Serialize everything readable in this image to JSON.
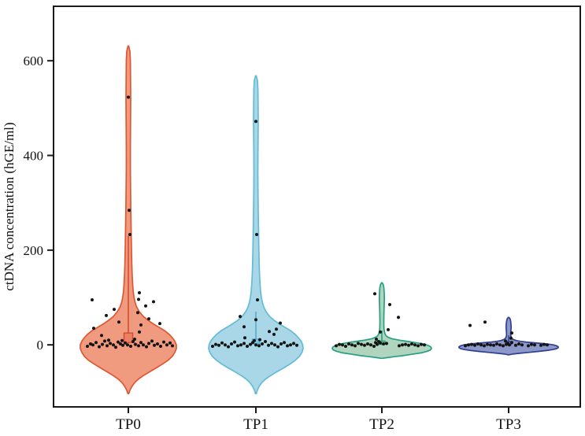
{
  "figure": {
    "background": "#ffffff",
    "axis_color": "#1a1a1a"
  },
  "chart_data": {
    "type": "violin",
    "title": "",
    "xlabel": "",
    "ylabel": "ctDNA concentration (hGE/ml)",
    "categories": [
      "TP0",
      "TP1",
      "TP2",
      "TP3"
    ],
    "y_ticks": [
      0,
      200,
      400,
      600
    ],
    "ylim": [
      -131,
      715
    ],
    "grid": false,
    "legend": "none",
    "point_color": "#141414",
    "point_radius": 2,
    "groups": [
      {
        "name": "TP0",
        "fill": "#F09A80",
        "stroke": "#DE5733",
        "peak_value": 631,
        "min_value": -103,
        "box": {
          "lo": 5,
          "hi": 25,
          "width": 11,
          "whisker_hi": 230,
          "fill": "#EC7F64",
          "stroke": "#D2492A"
        },
        "profile": [
          [
            631,
            0.5
          ],
          [
            620,
            2
          ],
          [
            600,
            2.6
          ],
          [
            560,
            2.8
          ],
          [
            520,
            3
          ],
          [
            470,
            2.8
          ],
          [
            420,
            2.6
          ],
          [
            370,
            2.6
          ],
          [
            320,
            2.9
          ],
          [
            280,
            3.2
          ],
          [
            240,
            3.6
          ],
          [
            200,
            4
          ],
          [
            170,
            4.4
          ],
          [
            150,
            4.8
          ],
          [
            130,
            5.4
          ],
          [
            112,
            6.2
          ],
          [
            100,
            7.2
          ],
          [
            90,
            8.5
          ],
          [
            80,
            10.5
          ],
          [
            70,
            14
          ],
          [
            60,
            19
          ],
          [
            52,
            25
          ],
          [
            45,
            31
          ],
          [
            38,
            38
          ],
          [
            30,
            46
          ],
          [
            22,
            52
          ],
          [
            15,
            56
          ],
          [
            8,
            59
          ],
          [
            0,
            61
          ],
          [
            -8,
            61
          ],
          [
            -16,
            59
          ],
          [
            -24,
            56
          ],
          [
            -32,
            51
          ],
          [
            -40,
            44
          ],
          [
            -48,
            36
          ],
          [
            -56,
            28
          ],
          [
            -64,
            20
          ],
          [
            -72,
            13
          ],
          [
            -80,
            8
          ],
          [
            -88,
            4.5
          ],
          [
            -96,
            2
          ],
          [
            -103,
            0.5
          ]
        ],
        "points": [
          [
            -3,
            -52
          ],
          [
            2,
            -48
          ],
          [
            0,
            -45
          ],
          [
            5,
            -41
          ],
          [
            -4,
            -37
          ],
          [
            1,
            -33
          ],
          [
            8,
            -30
          ],
          [
            -2,
            -27
          ],
          [
            3,
            -23
          ],
          [
            0,
            -19
          ],
          [
            -5,
            -16
          ],
          [
            6,
            -13
          ],
          [
            2,
            -10
          ],
          [
            -1,
            -7
          ],
          [
            4,
            -4
          ],
          [
            0,
            -1
          ],
          [
            -3,
            3
          ],
          [
            7,
            6
          ],
          [
            1,
            9
          ],
          [
            -2,
            13
          ],
          [
            5,
            16
          ],
          [
            0,
            19
          ],
          [
            -4,
            23
          ],
          [
            3,
            26
          ],
          [
            8,
            30
          ],
          [
            -1,
            33
          ],
          [
            2,
            37
          ],
          [
            -3,
            41
          ],
          [
            6,
            45
          ],
          [
            0,
            49
          ],
          [
            4,
            53
          ],
          [
            -2,
            56
          ],
          [
            10,
            -25
          ],
          [
            12,
            8
          ],
          [
            9,
            -8
          ],
          [
            20,
            -34
          ],
          [
            27,
            14
          ],
          [
            35,
            -44
          ],
          [
            42,
            16
          ],
          [
            48,
            -12
          ],
          [
            55,
            26
          ],
          [
            62,
            -28
          ],
          [
            68,
            12
          ],
          [
            75,
            -18
          ],
          [
            82,
            22
          ],
          [
            91,
            32
          ],
          [
            96,
            13
          ],
          [
            95,
            -46
          ],
          [
            110,
            14
          ],
          [
            45,
            40
          ],
          [
            233,
            2
          ],
          [
            284,
            1
          ],
          [
            523,
            0
          ]
        ]
      },
      {
        "name": "TP1",
        "fill": "#A9D7E8",
        "stroke": "#64BBD6",
        "peak_value": 568,
        "min_value": -103,
        "box": {
          "lo": 2,
          "hi": 12,
          "width": 9,
          "whisker_hi": 70,
          "fill": "#79C4DE",
          "stroke": "#4FA8C9"
        },
        "profile": [
          [
            568,
            0.5
          ],
          [
            558,
            2
          ],
          [
            540,
            2.6
          ],
          [
            510,
            2.8
          ],
          [
            475,
            3
          ],
          [
            440,
            2.8
          ],
          [
            400,
            2.6
          ],
          [
            360,
            2.5
          ],
          [
            320,
            2.7
          ],
          [
            280,
            3
          ],
          [
            240,
            3.4
          ],
          [
            200,
            3.8
          ],
          [
            170,
            4.2
          ],
          [
            150,
            4.6
          ],
          [
            130,
            5.2
          ],
          [
            112,
            6
          ],
          [
            100,
            7
          ],
          [
            90,
            8.2
          ],
          [
            80,
            10
          ],
          [
            70,
            13
          ],
          [
            60,
            17.5
          ],
          [
            52,
            23
          ],
          [
            45,
            29
          ],
          [
            38,
            36
          ],
          [
            30,
            44
          ],
          [
            22,
            50
          ],
          [
            15,
            54
          ],
          [
            8,
            57.5
          ],
          [
            0,
            59.5
          ],
          [
            -8,
            60
          ],
          [
            -16,
            58.5
          ],
          [
            -24,
            55.5
          ],
          [
            -32,
            50.5
          ],
          [
            -40,
            44
          ],
          [
            -48,
            36
          ],
          [
            -56,
            27.5
          ],
          [
            -64,
            19.5
          ],
          [
            -72,
            12.5
          ],
          [
            -80,
            7.5
          ],
          [
            -88,
            4
          ],
          [
            -96,
            1.8
          ],
          [
            -103,
            0.5
          ]
        ],
        "points": [
          [
            -3,
            -55
          ],
          [
            1,
            -51
          ],
          [
            -1,
            -47
          ],
          [
            4,
            -43
          ],
          [
            0,
            -39
          ],
          [
            -4,
            -35
          ],
          [
            2,
            -31
          ],
          [
            6,
            -27
          ],
          [
            -2,
            -23
          ],
          [
            0,
            -19
          ],
          [
            3,
            -15
          ],
          [
            -3,
            -11
          ],
          [
            1,
            -7
          ],
          [
            5,
            -4
          ],
          [
            0,
            0
          ],
          [
            -2,
            4
          ],
          [
            2,
            8
          ],
          [
            7,
            12
          ],
          [
            -1,
            16
          ],
          [
            3,
            20
          ],
          [
            0,
            24
          ],
          [
            -4,
            28
          ],
          [
            2,
            32
          ],
          [
            5,
            36
          ],
          [
            -2,
            40
          ],
          [
            0,
            44
          ],
          [
            3,
            48
          ],
          [
            -1,
            52
          ],
          [
            9,
            -2
          ],
          [
            11,
            5
          ],
          [
            15,
            -14
          ],
          [
            22,
            23
          ],
          [
            28,
            17
          ],
          [
            33,
            26
          ],
          [
            38,
            -15
          ],
          [
            46,
            31
          ],
          [
            53,
            0
          ],
          [
            60,
            -20
          ],
          [
            95,
            2
          ],
          [
            233,
            1
          ],
          [
            472,
            0
          ]
        ]
      },
      {
        "name": "TP2",
        "fill": "#B0D4BE",
        "stroke": "#26A083",
        "peak_value": 131,
        "min_value": -28,
        "box": {
          "lo": 1,
          "hi": 8,
          "width": 8,
          "whisker_hi": 30,
          "fill": "#7FBFA0",
          "stroke": "#23997F"
        },
        "profile": [
          [
            131,
            0.5
          ],
          [
            127,
            1.8
          ],
          [
            120,
            2.6
          ],
          [
            110,
            3
          ],
          [
            98,
            3.2
          ],
          [
            88,
            3
          ],
          [
            76,
            2.8
          ],
          [
            64,
            2.6
          ],
          [
            52,
            2.5
          ],
          [
            42,
            2.5
          ],
          [
            34,
            2.7
          ],
          [
            28,
            3.2
          ],
          [
            23,
            4
          ],
          [
            19,
            5.5
          ],
          [
            16,
            8
          ],
          [
            13,
            13
          ],
          [
            10,
            22
          ],
          [
            7,
            34
          ],
          [
            4,
            46
          ],
          [
            1,
            55
          ],
          [
            -2,
            60
          ],
          [
            -5,
            62.5
          ],
          [
            -8,
            63
          ],
          [
            -11,
            61.5
          ],
          [
            -14,
            57
          ],
          [
            -17,
            50
          ],
          [
            -20,
            38
          ],
          [
            -23,
            26
          ],
          [
            -25,
            16
          ],
          [
            -27,
            7
          ],
          [
            -28.5,
            0.5
          ]
        ],
        "points": [
          [
            -2,
            -58
          ],
          [
            1,
            -54
          ],
          [
            0,
            -50
          ],
          [
            -3,
            -46
          ],
          [
            2,
            -42
          ],
          [
            0,
            -38
          ],
          [
            -2,
            -34
          ],
          [
            3,
            -30
          ],
          [
            1,
            -26
          ],
          [
            -1,
            -22
          ],
          [
            2,
            -18
          ],
          [
            0,
            -14
          ],
          [
            -3,
            -10
          ],
          [
            1,
            -6
          ],
          [
            4,
            -2
          ],
          [
            2,
            2
          ],
          [
            3,
            6
          ],
          [
            5,
            -8
          ],
          [
            7,
            -4
          ],
          [
            -2,
            22
          ],
          [
            0,
            26
          ],
          [
            1,
            30
          ],
          [
            -1,
            34
          ],
          [
            2,
            38
          ],
          [
            0,
            42
          ],
          [
            -2,
            46
          ],
          [
            1,
            50
          ],
          [
            0,
            54
          ],
          [
            12,
            -7
          ],
          [
            27,
            -2
          ],
          [
            32,
            8
          ],
          [
            58,
            21
          ],
          [
            85,
            10
          ],
          [
            108,
            -9
          ]
        ]
      },
      {
        "name": "TP3",
        "fill": "#8C98C8",
        "stroke": "#323F90",
        "peak_value": 58,
        "min_value": -21,
        "box": {
          "lo": 1,
          "hi": 7,
          "width": 7,
          "whisker_hi": 20,
          "fill": "#6F7FBC",
          "stroke": "#303E90"
        },
        "profile": [
          [
            58,
            0.5
          ],
          [
            55,
            1.8
          ],
          [
            50,
            2.6
          ],
          [
            44,
            3
          ],
          [
            38,
            3.2
          ],
          [
            32,
            3
          ],
          [
            27,
            2.8
          ],
          [
            23,
            2.6
          ],
          [
            19,
            2.8
          ],
          [
            16,
            3.4
          ],
          [
            13,
            4.5
          ],
          [
            11,
            6.5
          ],
          [
            9,
            10
          ],
          [
            7.5,
            15
          ],
          [
            6,
            22
          ],
          [
            4.5,
            32
          ],
          [
            3,
            42
          ],
          [
            1.5,
            51
          ],
          [
            0,
            57
          ],
          [
            -2,
            61
          ],
          [
            -4,
            63
          ],
          [
            -6,
            63
          ],
          [
            -8,
            61
          ],
          [
            -10,
            56
          ],
          [
            -12,
            48
          ],
          [
            -14,
            37
          ],
          [
            -16,
            25
          ],
          [
            -18,
            13
          ],
          [
            -19.5,
            5
          ],
          [
            -21,
            0.5
          ]
        ],
        "points": [
          [
            -2,
            -55
          ],
          [
            0,
            -51
          ],
          [
            1,
            -47
          ],
          [
            -1,
            -43
          ],
          [
            2,
            -39
          ],
          [
            0,
            -35
          ],
          [
            -2,
            -31
          ],
          [
            1,
            -27
          ],
          [
            0,
            -23
          ],
          [
            -1,
            -19
          ],
          [
            2,
            -15
          ],
          [
            0,
            -11
          ],
          [
            -2,
            -7
          ],
          [
            1,
            -3
          ],
          [
            0,
            1
          ],
          [
            3,
            -1
          ],
          [
            5,
            4
          ],
          [
            -1,
            9
          ],
          [
            2,
            13
          ],
          [
            0,
            17
          ],
          [
            -2,
            25
          ],
          [
            1,
            29
          ],
          [
            0,
            33
          ],
          [
            -1,
            41
          ],
          [
            1,
            45
          ],
          [
            0,
            49
          ],
          [
            8,
            -4
          ],
          [
            14,
            3
          ],
          [
            25,
            4
          ],
          [
            41,
            -49
          ],
          [
            48,
            -30
          ]
        ]
      }
    ]
  }
}
